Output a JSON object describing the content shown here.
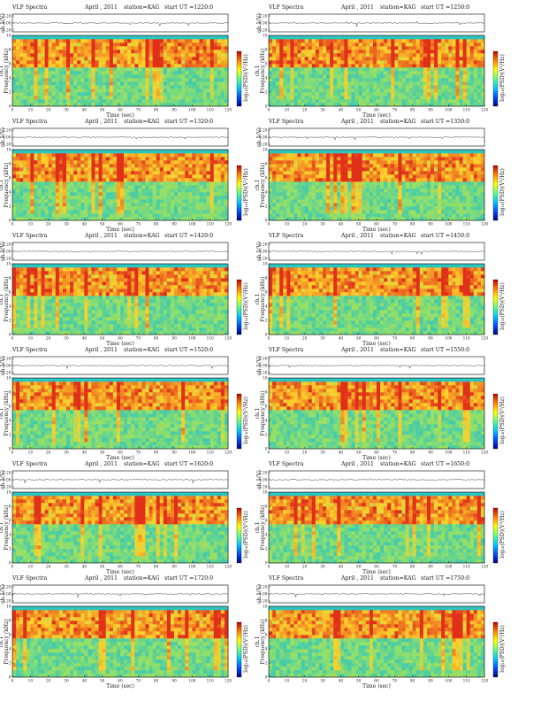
{
  "header": {
    "title": "VLF Spectra",
    "month": "April , 2011",
    "station": "station=KAG",
    "start_prefix": "start  UT  ="
  },
  "labels": {
    "ch_axis": "ch.1(V)",
    "freq_axis": "Frequency  (kHz)",
    "channel": "ch.1",
    "time_axis": "Time  (sec)",
    "colorbar": "log₁₀(PSD)(V²/Hz)"
  },
  "ticks": {
    "amp": [
      "0.20",
      "0.00",
      "-0.20"
    ],
    "freq": [
      "0",
      "2",
      "4",
      "6",
      "8",
      "10"
    ],
    "time": [
      "0",
      "10",
      "20",
      "30",
      "40",
      "50",
      "60",
      "70",
      "80",
      "90",
      "100",
      "110",
      "120"
    ]
  },
  "colors": {
    "noise_floor": "#2ec4c0",
    "mid": "#8fe06a",
    "band": "#ffd02a",
    "peak": "#e0301a",
    "cbar": [
      "#000080",
      "#0050ff",
      "#00c8ff",
      "#60ff80",
      "#ffff00",
      "#ff8000",
      "#c00000"
    ]
  },
  "chart_data": [
    {
      "type": "heatmap",
      "start_ut": "1220:0",
      "x": [
        0,
        120
      ],
      "y": [
        0,
        10
      ],
      "x_unit": "sec",
      "y_unit": "kHz",
      "band_kHz": [
        6,
        9.5
      ]
    },
    {
      "type": "heatmap",
      "start_ut": "1250:0",
      "x": [
        0,
        120
      ],
      "y": [
        0,
        10
      ],
      "x_unit": "sec",
      "y_unit": "kHz",
      "band_kHz": [
        6,
        9.5
      ]
    },
    {
      "type": "heatmap",
      "start_ut": "1320:0",
      "x": [
        0,
        120
      ],
      "y": [
        0,
        10
      ],
      "x_unit": "sec",
      "y_unit": "kHz",
      "band_kHz": [
        6,
        9.5
      ]
    },
    {
      "type": "heatmap",
      "start_ut": "1350:0",
      "x": [
        0,
        120
      ],
      "y": [
        0,
        10
      ],
      "x_unit": "sec",
      "y_unit": "kHz",
      "band_kHz": [
        6,
        9.5
      ]
    },
    {
      "type": "heatmap",
      "start_ut": "1420:0",
      "x": [
        0,
        120
      ],
      "y": [
        0,
        10
      ],
      "x_unit": "sec",
      "y_unit": "kHz",
      "band_kHz": [
        6,
        9.5
      ]
    },
    {
      "type": "heatmap",
      "start_ut": "1450:0",
      "x": [
        0,
        120
      ],
      "y": [
        0,
        10
      ],
      "x_unit": "sec",
      "y_unit": "kHz",
      "band_kHz": [
        6,
        9.5
      ]
    },
    {
      "type": "heatmap",
      "start_ut": "1520:0",
      "x": [
        0,
        120
      ],
      "y": [
        0,
        10
      ],
      "x_unit": "sec",
      "y_unit": "kHz",
      "band_kHz": [
        6,
        9.5
      ]
    },
    {
      "type": "heatmap",
      "start_ut": "1550:0",
      "x": [
        0,
        120
      ],
      "y": [
        0,
        10
      ],
      "x_unit": "sec",
      "y_unit": "kHz",
      "band_kHz": [
        6,
        9.5
      ]
    },
    {
      "type": "heatmap",
      "start_ut": "1620:0",
      "x": [
        0,
        120
      ],
      "y": [
        0,
        10
      ],
      "x_unit": "sec",
      "y_unit": "kHz",
      "band_kHz": [
        6,
        9.5
      ]
    },
    {
      "type": "heatmap",
      "start_ut": "1650:0",
      "x": [
        0,
        120
      ],
      "y": [
        0,
        10
      ],
      "x_unit": "sec",
      "y_unit": "kHz",
      "band_kHz": [
        6,
        9.5
      ]
    },
    {
      "type": "heatmap",
      "start_ut": "1720:0",
      "x": [
        0,
        120
      ],
      "y": [
        0,
        10
      ],
      "x_unit": "sec",
      "y_unit": "kHz",
      "band_kHz": [
        6,
        9.5
      ]
    },
    {
      "type": "heatmap",
      "start_ut": "1750:0",
      "x": [
        0,
        120
      ],
      "y": [
        0,
        10
      ],
      "x_unit": "sec",
      "y_unit": "kHz",
      "band_kHz": [
        6,
        9.5
      ]
    }
  ]
}
